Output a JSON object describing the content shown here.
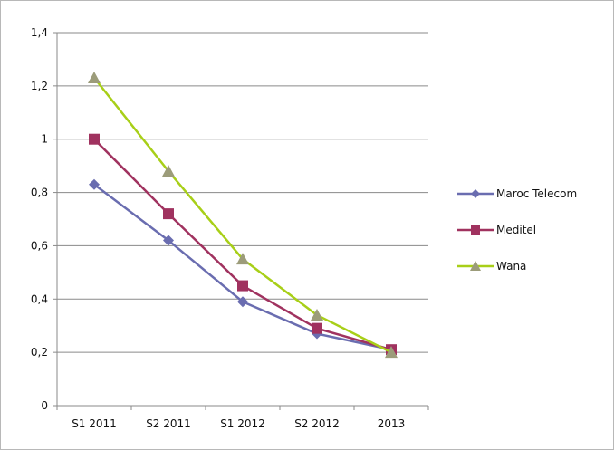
{
  "chart_data": {
    "type": "line",
    "categories": [
      "S1 2011",
      "S2 2011",
      "S1 2012",
      "S2 2012",
      "2013"
    ],
    "ylim": [
      0,
      1.4
    ],
    "yticks": [
      0,
      0.2,
      0.4,
      0.6,
      0.8,
      1,
      1.2,
      1.4
    ],
    "ytick_labels": [
      "0",
      "0,2",
      "0,4",
      "0,6",
      "0,8",
      "1",
      "1,2",
      "1,4"
    ],
    "grid": "horizontal",
    "legend_position": "right",
    "series": [
      {
        "name": "Maroc Telecom",
        "values": [
          0.83,
          0.62,
          0.39,
          0.27,
          0.21
        ],
        "color": "#6a6db0",
        "marker": "diamond"
      },
      {
        "name": "Meditel",
        "values": [
          1.0,
          0.72,
          0.45,
          0.29,
          0.21
        ],
        "color": "#a0325f",
        "marker": "square"
      },
      {
        "name": "Wana",
        "values": [
          1.23,
          0.88,
          0.55,
          0.34,
          0.2
        ],
        "color": "#a8cf18",
        "marker_fill": "#9c9c7a",
        "marker": "triangle"
      }
    ]
  }
}
